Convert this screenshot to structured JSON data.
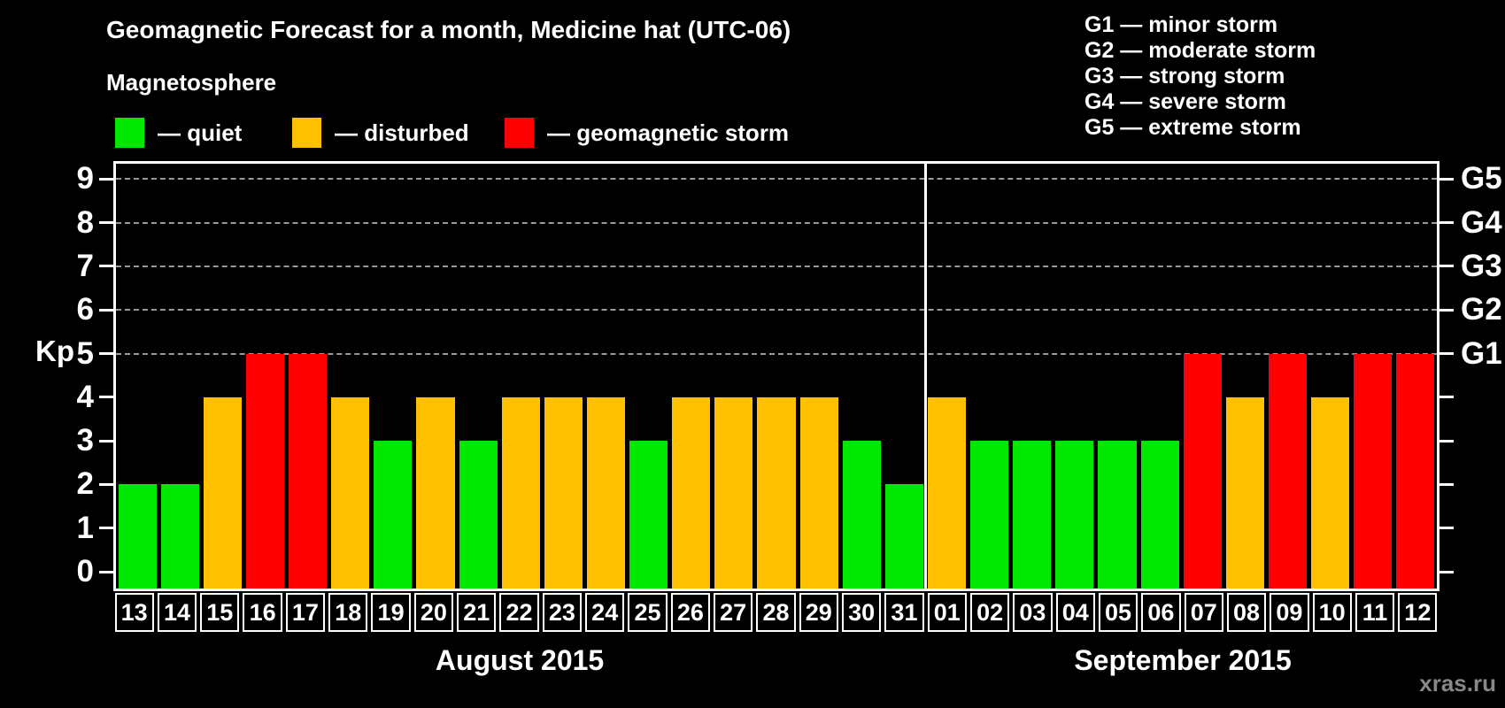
{
  "header": {
    "title": "Geomagnetic Forecast for a month, Medicine hat (UTC-06)",
    "subtitle": "Magnetosphere"
  },
  "magnetosphere_legend": [
    {
      "status": "quiet",
      "label": "— quiet",
      "color": "#00E800"
    },
    {
      "status": "disturbed",
      "label": "— disturbed",
      "color": "#FFC000"
    },
    {
      "status": "storm",
      "label": "— geomagnetic storm",
      "color": "#FF0000"
    }
  ],
  "storm_scale_legend": [
    {
      "text": "G1 — minor storm"
    },
    {
      "text": "G2 — moderate storm"
    },
    {
      "text": "G3 — strong storm"
    },
    {
      "text": "G4 — severe storm"
    },
    {
      "text": "G5 — extreme storm"
    }
  ],
  "watermark": "xras.ru",
  "chart_data": {
    "type": "bar",
    "title": "Geomagnetic Forecast for a month, Medicine hat (UTC-06)",
    "ylabel": "Kp",
    "ylim": [
      0,
      9
    ],
    "yticks": [
      0,
      1,
      2,
      3,
      4,
      5,
      6,
      7,
      8,
      9
    ],
    "gridlines_at": [
      5,
      6,
      7,
      8,
      9
    ],
    "grid_style": "dashed",
    "legend_position": "top",
    "right_axis": [
      {
        "kp": 5,
        "label": "G1"
      },
      {
        "kp": 6,
        "label": "G2"
      },
      {
        "kp": 7,
        "label": "G3"
      },
      {
        "kp": 8,
        "label": "G4"
      },
      {
        "kp": 9,
        "label": "G5"
      }
    ],
    "colors": {
      "quiet": "#00E800",
      "disturbed": "#FFC000",
      "storm": "#FF0000"
    },
    "months": [
      {
        "label": "August 2015",
        "days": [
          "13",
          "14",
          "15",
          "16",
          "17",
          "18",
          "19",
          "20",
          "21",
          "22",
          "23",
          "24",
          "25",
          "26",
          "27",
          "28",
          "29",
          "30",
          "31"
        ],
        "kp": [
          2,
          2,
          4,
          5,
          5,
          4,
          3,
          4,
          3,
          4,
          4,
          4,
          3,
          4,
          4,
          4,
          4,
          3,
          2
        ],
        "status": [
          "quiet",
          "quiet",
          "disturbed",
          "storm",
          "storm",
          "disturbed",
          "quiet",
          "disturbed",
          "quiet",
          "disturbed",
          "disturbed",
          "disturbed",
          "quiet",
          "disturbed",
          "disturbed",
          "disturbed",
          "disturbed",
          "quiet",
          "quiet"
        ]
      },
      {
        "label": "September 2015",
        "days": [
          "01",
          "02",
          "03",
          "04",
          "05",
          "06",
          "07",
          "08",
          "09",
          "10",
          "11",
          "12"
        ],
        "kp": [
          4,
          3,
          3,
          3,
          3,
          3,
          5,
          4,
          5,
          4,
          5,
          5
        ],
        "status": [
          "disturbed",
          "quiet",
          "quiet",
          "quiet",
          "quiet",
          "quiet",
          "storm",
          "disturbed",
          "storm",
          "disturbed",
          "storm",
          "storm"
        ]
      }
    ]
  }
}
